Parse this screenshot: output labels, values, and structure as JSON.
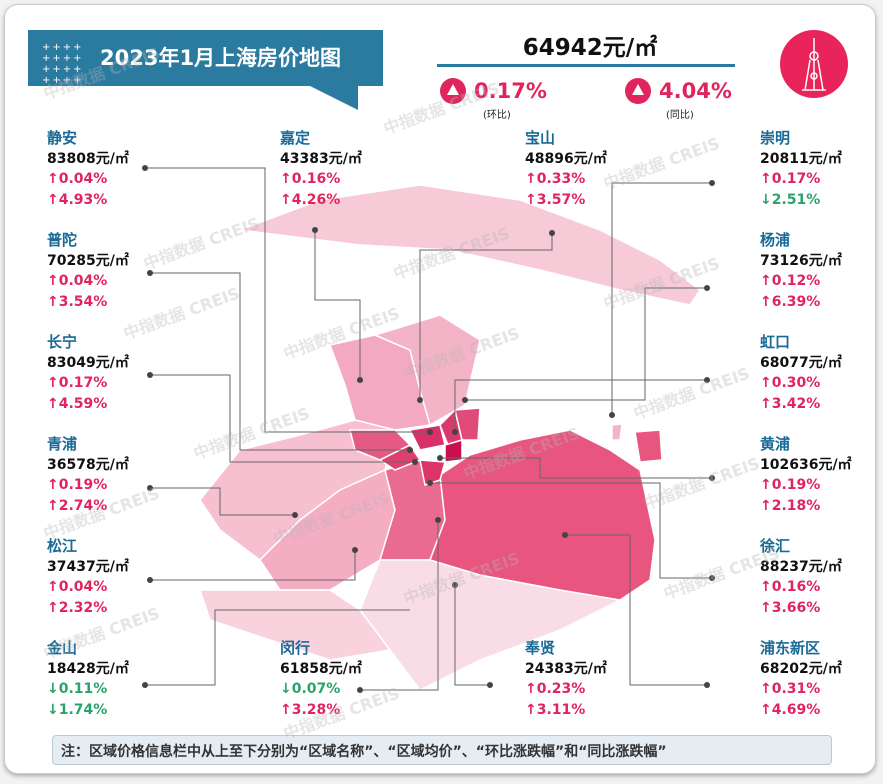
{
  "title": "2023年1月上海房价地图",
  "overall": {
    "price": "64942元/㎡",
    "mom": "0.17%",
    "mom_label": "(环比)",
    "yoy": "4.04%",
    "yoy_label": "(同比)",
    "mom_dir": "up",
    "yoy_dir": "up"
  },
  "watermark": "中指数据 CREIS",
  "colors": {
    "up": "#e0245e",
    "down": "#2aa36b",
    "banner": "#2b7aa0",
    "name": "#1a6a96"
  },
  "districts": [
    {
      "name": "静安",
      "price": "83808元/㎡",
      "mom": "↑0.04%",
      "yoy": "↑4.93%",
      "mom_dir": "up",
      "yoy_dir": "up"
    },
    {
      "name": "普陀",
      "price": "70285元/㎡",
      "mom": "↑0.04%",
      "yoy": "↑3.54%",
      "mom_dir": "up",
      "yoy_dir": "up"
    },
    {
      "name": "长宁",
      "price": "83049元/㎡",
      "mom": "↑0.17%",
      "yoy": "↑4.59%",
      "mom_dir": "up",
      "yoy_dir": "up"
    },
    {
      "name": "青浦",
      "price": "36578元/㎡",
      "mom": "↑0.19%",
      "yoy": "↑2.74%",
      "mom_dir": "up",
      "yoy_dir": "up"
    },
    {
      "name": "松江",
      "price": "37437元/㎡",
      "mom": "↑0.04%",
      "yoy": "↑2.32%",
      "mom_dir": "up",
      "yoy_dir": "up"
    },
    {
      "name": "金山",
      "price": "18428元/㎡",
      "mom": "↓0.11%",
      "yoy": "↓1.74%",
      "mom_dir": "down",
      "yoy_dir": "down"
    },
    {
      "name": "嘉定",
      "price": "43383元/㎡",
      "mom": "↑0.16%",
      "yoy": "↑4.26%",
      "mom_dir": "up",
      "yoy_dir": "up"
    },
    {
      "name": "闵行",
      "price": "61858元/㎡",
      "mom": "↓0.07%",
      "yoy": "↑3.28%",
      "mom_dir": "down",
      "yoy_dir": "up"
    },
    {
      "name": "宝山",
      "price": "48896元/㎡",
      "mom": "↑0.33%",
      "yoy": "↑3.57%",
      "mom_dir": "up",
      "yoy_dir": "up"
    },
    {
      "name": "奉贤",
      "price": "24383元/㎡",
      "mom": "↑0.23%",
      "yoy": "↑3.11%",
      "mom_dir": "up",
      "yoy_dir": "up"
    },
    {
      "name": "崇明",
      "price": "20811元/㎡",
      "mom": "↑0.17%",
      "yoy": "↓2.51%",
      "mom_dir": "up",
      "yoy_dir": "down"
    },
    {
      "name": "杨浦",
      "price": "73126元/㎡",
      "mom": "↑0.12%",
      "yoy": "↑6.39%",
      "mom_dir": "up",
      "yoy_dir": "up"
    },
    {
      "name": "虹口",
      "price": "68077元/㎡",
      "mom": "↑0.30%",
      "yoy": "↑3.42%",
      "mom_dir": "up",
      "yoy_dir": "up"
    },
    {
      "name": "黄浦",
      "price": "102636元/㎡",
      "mom": "↑0.19%",
      "yoy": "↑2.18%",
      "mom_dir": "up",
      "yoy_dir": "up"
    },
    {
      "name": "徐汇",
      "price": "88237元/㎡",
      "mom": "↑0.16%",
      "yoy": "↑3.66%",
      "mom_dir": "up",
      "yoy_dir": "up"
    },
    {
      "name": "浦东新区",
      "price": "68202元/㎡",
      "mom": "↑0.31%",
      "yoy": "↑4.69%",
      "mom_dir": "up",
      "yoy_dir": "up"
    }
  ],
  "note": "注：区域价格信息栏中从上至下分别为“区域名称”、“区域均价”、“环比涨跌幅”和“同比涨跌幅”"
}
